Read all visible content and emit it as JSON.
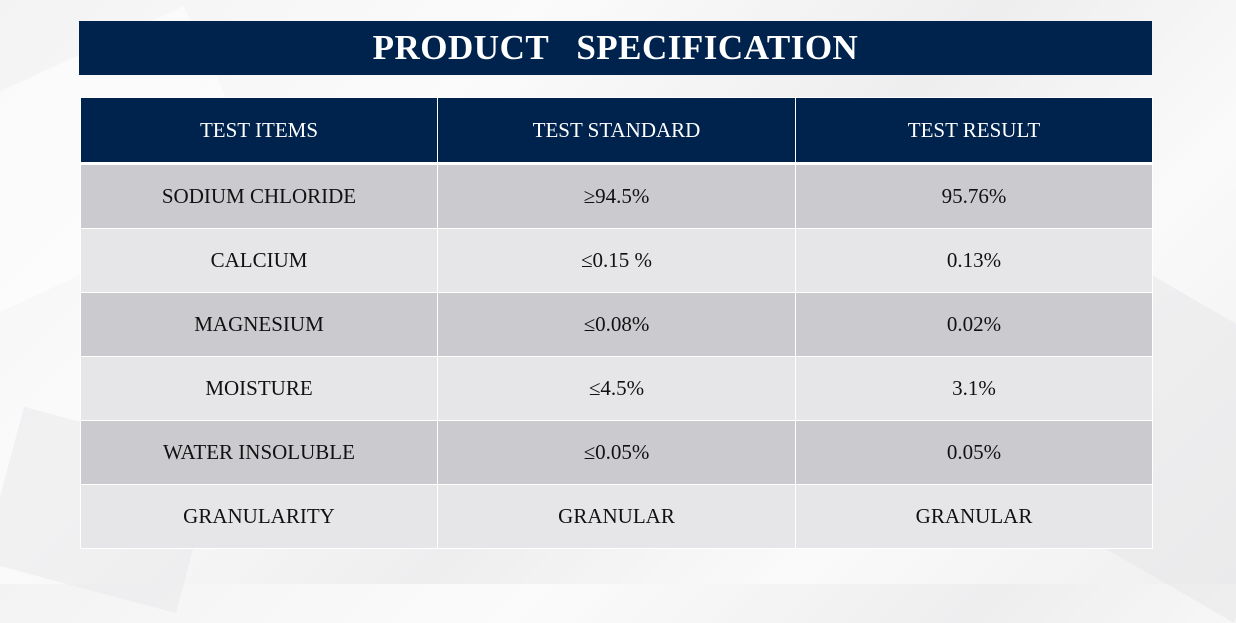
{
  "title": "PRODUCT   SPECIFICATION",
  "table": {
    "headers": [
      "TEST ITEMS",
      "TEST STANDARD",
      "TEST RESULT"
    ],
    "rows": [
      [
        "SODIUM CHLORIDE",
        "≥94.5%",
        "95.76%"
      ],
      [
        "CALCIUM",
        "≤0.15 %",
        "0.13%"
      ],
      [
        "MAGNESIUM",
        "≤0.08%",
        "0.02%"
      ],
      [
        "MOISTURE",
        "≤4.5%",
        "3.1%"
      ],
      [
        "WATER INSOLUBLE",
        "≤0.05%",
        "0.05%"
      ],
      [
        "GRANULARITY",
        "GRANULAR",
        "GRANULAR"
      ]
    ]
  },
  "colors": {
    "header_navy": "#00234d",
    "row_dark": "#cbcbcf",
    "row_light": "#e6e6e8"
  }
}
